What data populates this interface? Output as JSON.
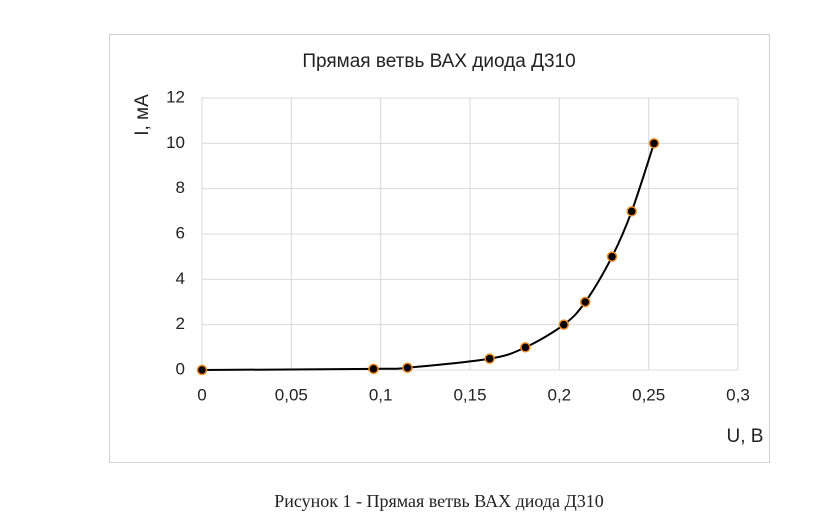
{
  "chart_data": {
    "type": "scatter",
    "title": "Прямая ветвь ВАХ диода Д310",
    "x_label": "U, В",
    "y_label": "I, мА",
    "series": [
      {
        "name": "ВАХ",
        "color": "#000000",
        "marker_color": "#f08a24",
        "x": [
          0,
          0.096,
          0.115,
          0.161,
          0.181,
          0.2025,
          0.2145,
          0.2295,
          0.2405,
          0.253
        ],
        "values": [
          0,
          0.05,
          0.1,
          0.5,
          1,
          2,
          3,
          5,
          7,
          10
        ]
      }
    ],
    "xlim": [
      0,
      0.3
    ],
    "xticks": [
      0,
      {
        "value": 0.05,
        "label": "0,05"
      },
      {
        "value": 0.1,
        "label": "0,1"
      },
      {
        "value": 0.15,
        "label": "0,15"
      },
      {
        "value": 0.2,
        "label": "0,2"
      },
      {
        "value": 0.25,
        "label": "0,25"
      },
      {
        "value": 0.3,
        "label": "0,3"
      }
    ],
    "ylim": [
      0,
      12
    ],
    "yticks": [
      0,
      2,
      4,
      6,
      8,
      10,
      12
    ],
    "grid": true
  },
  "caption": "Рисунок 1 - Прямая ветвь ВАХ диода Д310"
}
